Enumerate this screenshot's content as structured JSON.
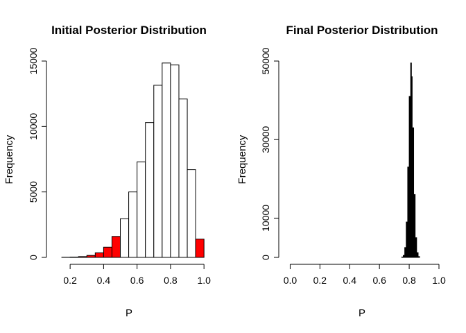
{
  "chart_data": [
    {
      "type": "histogram",
      "title": "Initial Posterior Distribution",
      "xlabel": "P",
      "ylabel": "Frequency",
      "xlim": [
        0.1,
        1.02
      ],
      "ylim": [
        0,
        15000
      ],
      "x_ticks": [
        "0.2",
        "0.4",
        "0.6",
        "0.8",
        "1.0"
      ],
      "y_ticks": [
        "0",
        "5000",
        "10000",
        "15000"
      ],
      "highlight_color": "#ff0000",
      "default_color": "#ffffff",
      "bins": [
        {
          "x0": 0.15,
          "x1": 0.2,
          "count": 10,
          "highlight": true
        },
        {
          "x0": 0.2,
          "x1": 0.25,
          "count": 25,
          "highlight": true
        },
        {
          "x0": 0.25,
          "x1": 0.3,
          "count": 60,
          "highlight": true
        },
        {
          "x0": 0.3,
          "x1": 0.35,
          "count": 150,
          "highlight": true
        },
        {
          "x0": 0.35,
          "x1": 0.4,
          "count": 350,
          "highlight": true
        },
        {
          "x0": 0.4,
          "x1": 0.45,
          "count": 780,
          "highlight": true
        },
        {
          "x0": 0.45,
          "x1": 0.5,
          "count": 1600,
          "highlight": true
        },
        {
          "x0": 0.5,
          "x1": 0.55,
          "count": 2950,
          "highlight": false
        },
        {
          "x0": 0.55,
          "x1": 0.6,
          "count": 5000,
          "highlight": false
        },
        {
          "x0": 0.6,
          "x1": 0.65,
          "count": 7300,
          "highlight": false
        },
        {
          "x0": 0.65,
          "x1": 0.7,
          "count": 10300,
          "highlight": false
        },
        {
          "x0": 0.7,
          "x1": 0.75,
          "count": 13150,
          "highlight": false
        },
        {
          "x0": 0.75,
          "x1": 0.8,
          "count": 14850,
          "highlight": false
        },
        {
          "x0": 0.8,
          "x1": 0.85,
          "count": 14700,
          "highlight": false
        },
        {
          "x0": 0.85,
          "x1": 0.9,
          "count": 12100,
          "highlight": false
        },
        {
          "x0": 0.9,
          "x1": 0.95,
          "count": 6700,
          "highlight": false
        },
        {
          "x0": 0.95,
          "x1": 1.0,
          "count": 1400,
          "highlight": true
        }
      ]
    },
    {
      "type": "histogram",
      "title": "Final Posterior Distribution",
      "xlabel": "P",
      "ylabel": "Frequency",
      "xlim": [
        -0.03,
        1.0
      ],
      "ylim": [
        0,
        50000
      ],
      "x_ticks": [
        "0.0",
        "0.2",
        "0.4",
        "0.6",
        "0.8",
        "1.0"
      ],
      "y_ticks": [
        "0",
        "10000",
        "30000",
        "50000"
      ],
      "fill_color": "#000000",
      "bins": [
        {
          "x0": 0.75,
          "x1": 0.76,
          "count": 100
        },
        {
          "x0": 0.76,
          "x1": 0.77,
          "count": 500
        },
        {
          "x0": 0.77,
          "x1": 0.78,
          "count": 2500
        },
        {
          "x0": 0.78,
          "x1": 0.79,
          "count": 9000
        },
        {
          "x0": 0.79,
          "x1": 0.8,
          "count": 23000
        },
        {
          "x0": 0.8,
          "x1": 0.81,
          "count": 41000
        },
        {
          "x0": 0.81,
          "x1": 0.815,
          "count": 49500
        },
        {
          "x0": 0.815,
          "x1": 0.82,
          "count": 46000
        },
        {
          "x0": 0.82,
          "x1": 0.83,
          "count": 33000
        },
        {
          "x0": 0.83,
          "x1": 0.84,
          "count": 16000
        },
        {
          "x0": 0.84,
          "x1": 0.85,
          "count": 5000
        },
        {
          "x0": 0.85,
          "x1": 0.86,
          "count": 1200
        },
        {
          "x0": 0.86,
          "x1": 0.87,
          "count": 200
        }
      ]
    }
  ]
}
